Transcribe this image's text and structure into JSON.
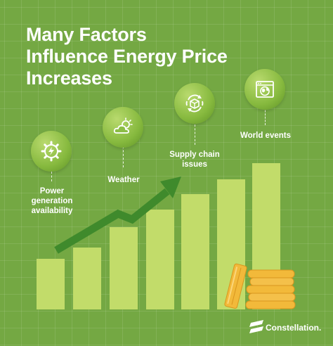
{
  "title": "Many Factors\nInfluence Energy Price\nIncreases",
  "factors": [
    {
      "label": "Power\ngeneration\navailability",
      "icon": "power-gear-icon"
    },
    {
      "label": "Weather",
      "icon": "weather-icon"
    },
    {
      "label": "Supply chain\nissues",
      "icon": "supply-chain-icon"
    },
    {
      "label": "World events",
      "icon": "world-events-icon"
    }
  ],
  "brand": "Constellation.",
  "colors": {
    "background": "#74a843",
    "bar": "#c2dc6a",
    "arrow": "#3f8a2c",
    "coins": "#f2b93a"
  }
}
